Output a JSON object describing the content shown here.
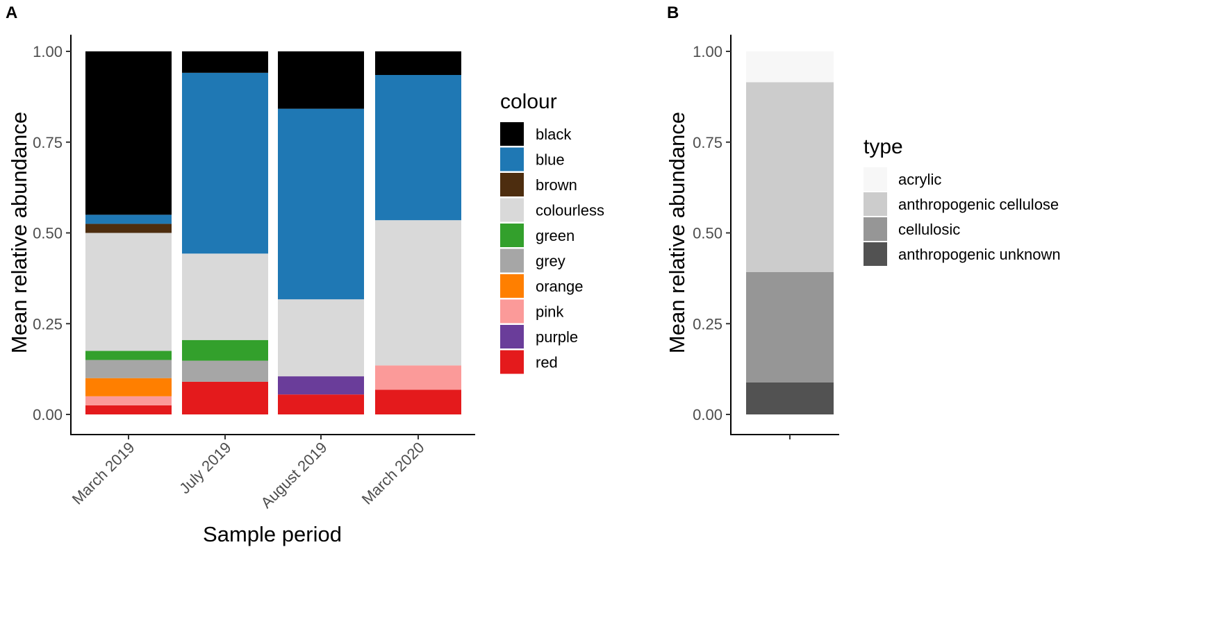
{
  "chart_data": [
    {
      "panel": "A",
      "type": "bar",
      "stacked": true,
      "title": "",
      "xlabel": "Sample period",
      "ylabel": "Mean relative abundance",
      "ylim": [
        0,
        1
      ],
      "yticks": [
        "0.00",
        "0.25",
        "0.50",
        "0.75",
        "1.00"
      ],
      "categories": [
        "March 2019",
        "July 2019",
        "August 2019",
        "March 2020"
      ],
      "legend_title": "colour",
      "legend_position": "right",
      "grid": false,
      "series": [
        {
          "name": "red",
          "color": "#e41a1c",
          "values": [
            0.025,
            0.09,
            0.055,
            0.068
          ]
        },
        {
          "name": "purple",
          "color": "#6a3d9a",
          "values": [
            0,
            0,
            0.05,
            0
          ]
        },
        {
          "name": "pink",
          "color": "#fb9a99",
          "values": [
            0.025,
            0,
            0,
            0.067
          ]
        },
        {
          "name": "orange",
          "color": "#ff7f00",
          "values": [
            0.05,
            0,
            0,
            0
          ]
        },
        {
          "name": "grey",
          "color": "#a6a6a6",
          "values": [
            0.05,
            0.058,
            0,
            0
          ]
        },
        {
          "name": "green",
          "color": "#33a02c",
          "values": [
            0.025,
            0.057,
            0,
            0
          ]
        },
        {
          "name": "colourless",
          "color": "#d9d9d9",
          "values": [
            0.325,
            0.238,
            0.212,
            0.4
          ]
        },
        {
          "name": "brown",
          "color": "#4d2d0f",
          "values": [
            0.025,
            0,
            0,
            0
          ]
        },
        {
          "name": "blue",
          "color": "#1f78b4",
          "values": [
            0.025,
            0.498,
            0.525,
            0.4
          ]
        },
        {
          "name": "black",
          "color": "#000000",
          "values": [
            0.45,
            0.059,
            0.158,
            0.065
          ]
        }
      ],
      "legend_order": [
        "black",
        "blue",
        "brown",
        "colourless",
        "green",
        "grey",
        "orange",
        "pink",
        "purple",
        "red"
      ]
    },
    {
      "panel": "B",
      "type": "bar",
      "stacked": true,
      "title": "",
      "xlabel": "",
      "ylabel": "Mean relative abundance",
      "ylim": [
        0,
        1
      ],
      "yticks": [
        "0.00",
        "0.25",
        "0.50",
        "0.75",
        "1.00"
      ],
      "categories": [
        ""
      ],
      "legend_title": "type",
      "legend_position": "right",
      "grid": false,
      "series": [
        {
          "name": "anthropogenic unknown",
          "color": "#525252",
          "values": [
            0.088
          ]
        },
        {
          "name": "cellulosic",
          "color": "#969696",
          "values": [
            0.304
          ]
        },
        {
          "name": "anthropogenic cellulose",
          "color": "#cccccc",
          "values": [
            0.523
          ]
        },
        {
          "name": "acrylic",
          "color": "#f7f7f7",
          "values": [
            0.085
          ]
        }
      ],
      "legend_order": [
        "acrylic",
        "anthropogenic cellulose",
        "cellulosic",
        "anthropogenic unknown"
      ]
    }
  ]
}
